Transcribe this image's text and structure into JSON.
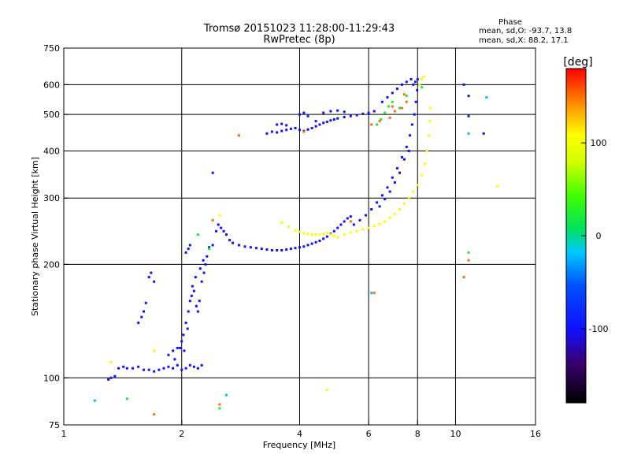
{
  "chart_data": {
    "type": "scatter",
    "title": "Tromsø 20151023 11:28:00-11:29:43",
    "subtitle": "RwPretec (8p)",
    "xlabel": "Frequency [MHz]",
    "ylabel": "Stationary phase Virtual Height [km]",
    "x_scale": "log",
    "y_scale": "log",
    "xlim": [
      1,
      16
    ],
    "ylim": [
      75,
      750
    ],
    "x_ticks": [
      1,
      2,
      4,
      6,
      8,
      10,
      16
    ],
    "y_ticks": [
      75,
      100,
      200,
      300,
      400,
      500,
      600,
      750
    ],
    "grid_x": [
      2,
      4,
      6,
      8,
      10
    ],
    "grid_y": [
      100,
      200,
      300,
      400,
      500,
      600
    ],
    "phase_box": {
      "title": "Phase",
      "line1": "mean, sd,O: -93.7, 13.8",
      "line2": "mean, sd,X:  88.2, 17.1"
    },
    "colorbar": {
      "label": "[deg]",
      "ticks": [
        100,
        0,
        -100
      ],
      "range": [
        -180,
        180
      ]
    },
    "series": [
      {
        "mode": "O",
        "phase_deg": -100,
        "points": [
          [
            1.3,
            99
          ],
          [
            1.32,
            100
          ],
          [
            1.35,
            101
          ],
          [
            1.38,
            106
          ],
          [
            1.42,
            107
          ],
          [
            1.45,
            106
          ],
          [
            1.5,
            106
          ],
          [
            1.55,
            107
          ],
          [
            1.6,
            105
          ],
          [
            1.65,
            105
          ],
          [
            1.7,
            104
          ],
          [
            1.75,
            105
          ],
          [
            1.8,
            106
          ],
          [
            1.85,
            107
          ],
          [
            1.9,
            106
          ],
          [
            1.95,
            108
          ],
          [
            2.0,
            105
          ],
          [
            2.05,
            106
          ],
          [
            2.1,
            108
          ],
          [
            2.15,
            107
          ],
          [
            2.2,
            106
          ],
          [
            2.25,
            108
          ],
          [
            1.55,
            140
          ],
          [
            1.58,
            145
          ],
          [
            1.6,
            150
          ],
          [
            1.62,
            158
          ],
          [
            1.65,
            185
          ],
          [
            1.67,
            190
          ],
          [
            1.7,
            180
          ],
          [
            1.85,
            115
          ],
          [
            1.9,
            118
          ],
          [
            1.92,
            112
          ],
          [
            1.95,
            120
          ],
          [
            2.0,
            125
          ],
          [
            2.02,
            130
          ],
          [
            2.05,
            140
          ],
          [
            2.08,
            150
          ],
          [
            2.1,
            160
          ],
          [
            2.12,
            165
          ],
          [
            2.15,
            170
          ],
          [
            2.18,
            155
          ],
          [
            2.2,
            150
          ],
          [
            2.22,
            160
          ],
          [
            2.25,
            180
          ],
          [
            2.28,
            190
          ],
          [
            2.3,
            200
          ],
          [
            2.32,
            210
          ],
          [
            2.35,
            222
          ],
          [
            2.05,
            215
          ],
          [
            2.08,
            220
          ],
          [
            2.1,
            225
          ],
          [
            1.98,
            120
          ],
          [
            2.03,
            118
          ],
          [
            2.07,
            135
          ],
          [
            2.13,
            175
          ],
          [
            2.17,
            185
          ],
          [
            2.23,
            195
          ],
          [
            2.27,
            205
          ],
          [
            2.4,
            225
          ],
          [
            2.45,
            245
          ],
          [
            2.48,
            255
          ],
          [
            2.52,
            250
          ],
          [
            2.56,
            245
          ],
          [
            2.6,
            240
          ],
          [
            2.65,
            232
          ],
          [
            2.7,
            228
          ],
          [
            2.8,
            225
          ],
          [
            2.9,
            223
          ],
          [
            3.0,
            222
          ],
          [
            3.1,
            221
          ],
          [
            3.2,
            220
          ],
          [
            3.3,
            219
          ],
          [
            3.4,
            218
          ],
          [
            3.5,
            218
          ],
          [
            3.6,
            218
          ],
          [
            3.7,
            219
          ],
          [
            3.8,
            220
          ],
          [
            3.9,
            221
          ],
          [
            4.0,
            222
          ],
          [
            4.1,
            223
          ],
          [
            4.2,
            225
          ],
          [
            4.3,
            227
          ],
          [
            4.4,
            229
          ],
          [
            4.5,
            231
          ],
          [
            4.6,
            234
          ],
          [
            4.7,
            237
          ],
          [
            4.8,
            241
          ],
          [
            4.9,
            245
          ],
          [
            5.0,
            250
          ],
          [
            5.1,
            255
          ],
          [
            5.2,
            260
          ],
          [
            5.3,
            265
          ],
          [
            5.4,
            268
          ],
          [
            5.5,
            255
          ],
          [
            5.7,
            262
          ],
          [
            5.9,
            270
          ],
          [
            6.1,
            280
          ],
          [
            6.3,
            292
          ],
          [
            6.5,
            305
          ],
          [
            6.7,
            320
          ],
          [
            6.9,
            340
          ],
          [
            7.1,
            360
          ],
          [
            7.3,
            385
          ],
          [
            7.5,
            410
          ],
          [
            7.65,
            440
          ],
          [
            7.75,
            470
          ],
          [
            7.85,
            500
          ],
          [
            7.92,
            540
          ],
          [
            7.98,
            580
          ],
          [
            8.0,
            620
          ],
          [
            7.9,
            610
          ],
          [
            7.8,
            600
          ],
          [
            7.6,
            400
          ],
          [
            7.4,
            380
          ],
          [
            7.2,
            350
          ],
          [
            7.0,
            330
          ],
          [
            6.8,
            312
          ],
          [
            6.6,
            298
          ],
          [
            6.4,
            285
          ],
          [
            3.3,
            445
          ],
          [
            3.4,
            450
          ],
          [
            3.5,
            448
          ],
          [
            3.6,
            452
          ],
          [
            3.7,
            455
          ],
          [
            3.8,
            458
          ],
          [
            3.9,
            460
          ],
          [
            4.0,
            455
          ],
          [
            4.1,
            452
          ],
          [
            4.2,
            456
          ],
          [
            4.3,
            460
          ],
          [
            4.4,
            465
          ],
          [
            4.5,
            470
          ],
          [
            4.6,
            475
          ],
          [
            4.7,
            478
          ],
          [
            4.8,
            482
          ],
          [
            4.9,
            485
          ],
          [
            5.0,
            488
          ],
          [
            5.2,
            492
          ],
          [
            5.4,
            495
          ],
          [
            5.6,
            498
          ],
          [
            5.8,
            502
          ],
          [
            6.0,
            505
          ],
          [
            6.2,
            510
          ],
          [
            3.5,
            470
          ],
          [
            3.6,
            472
          ],
          [
            3.7,
            468
          ],
          [
            4.0,
            500
          ],
          [
            4.1,
            505
          ],
          [
            4.2,
            495
          ],
          [
            4.4,
            480
          ],
          [
            4.6,
            505
          ],
          [
            4.8,
            510
          ],
          [
            5.0,
            512
          ],
          [
            5.2,
            508
          ],
          [
            6.5,
            540
          ],
          [
            6.7,
            555
          ],
          [
            6.9,
            570
          ],
          [
            7.1,
            585
          ],
          [
            7.3,
            600
          ],
          [
            7.5,
            610
          ],
          [
            7.7,
            620
          ],
          [
            2.4,
            350
          ],
          [
            10.5,
            600
          ],
          [
            10.8,
            560
          ],
          [
            10.8,
            495
          ],
          [
            11.8,
            445
          ]
        ]
      },
      {
        "mode": "X",
        "phase_deg": 110,
        "points": [
          [
            3.6,
            258
          ],
          [
            3.75,
            252
          ],
          [
            3.9,
            246
          ],
          [
            4.0,
            244
          ],
          [
            4.1,
            242
          ],
          [
            4.2,
            241
          ],
          [
            4.3,
            240
          ],
          [
            4.4,
            240
          ],
          [
            4.5,
            240
          ],
          [
            4.6,
            241
          ],
          [
            4.7,
            242
          ],
          [
            4.8,
            240
          ],
          [
            4.9,
            238
          ],
          [
            5.0,
            236
          ],
          [
            5.2,
            240
          ],
          [
            5.4,
            243
          ],
          [
            5.6,
            245
          ],
          [
            5.8,
            248
          ],
          [
            6.0,
            250
          ],
          [
            6.2,
            253
          ],
          [
            6.4,
            256
          ],
          [
            6.6,
            260
          ],
          [
            6.8,
            266
          ],
          [
            7.0,
            272
          ],
          [
            7.2,
            280
          ],
          [
            7.4,
            290
          ],
          [
            7.6,
            300
          ],
          [
            7.8,
            312
          ],
          [
            8.0,
            325
          ],
          [
            8.2,
            345
          ],
          [
            8.35,
            370
          ],
          [
            8.45,
            400
          ],
          [
            8.55,
            440
          ],
          [
            8.6,
            480
          ],
          [
            8.62,
            520
          ],
          [
            8.1,
            600
          ],
          [
            8.2,
            620
          ],
          [
            8.3,
            630
          ],
          [
            1.32,
            110
          ],
          [
            1.7,
            118
          ],
          [
            2.5,
            270
          ],
          [
            12.8,
            322
          ],
          [
            4.7,
            93
          ]
        ]
      },
      {
        "mode": "O",
        "phase_deg": 20,
        "points": [
          [
            6.3,
            470
          ],
          [
            6.45,
            485
          ],
          [
            6.6,
            505
          ],
          [
            6.75,
            525
          ],
          [
            6.9,
            540
          ],
          [
            7.2,
            520
          ],
          [
            7.5,
            560
          ],
          [
            10.8,
            215
          ],
          [
            8.2,
            590
          ],
          [
            1.45,
            88
          ],
          [
            2.5,
            83
          ],
          [
            2.2,
            240
          ],
          [
            2.35,
            220
          ]
        ]
      },
      {
        "mode": "X",
        "phase_deg": 150,
        "points": [
          [
            6.1,
            470
          ],
          [
            6.4,
            480
          ],
          [
            6.8,
            490
          ],
          [
            7.0,
            510
          ],
          [
            7.3,
            520
          ],
          [
            7.5,
            540
          ],
          [
            7.4,
            565
          ],
          [
            6.9,
            525
          ],
          [
            5.4,
            260
          ],
          [
            2.8,
            440
          ],
          [
            6.2,
            168
          ],
          [
            10.8,
            205
          ],
          [
            10.5,
            185
          ],
          [
            4.1,
            450
          ],
          [
            2.5,
            85
          ],
          [
            1.7,
            80
          ],
          [
            2.4,
            262
          ]
        ]
      },
      {
        "mode": "X",
        "phase_deg": -20,
        "points": [
          [
            1.2,
            87
          ],
          [
            10.8,
            445
          ],
          [
            12.0,
            555
          ],
          [
            2.6,
            90
          ],
          [
            6.1,
            168
          ]
        ]
      }
    ]
  }
}
